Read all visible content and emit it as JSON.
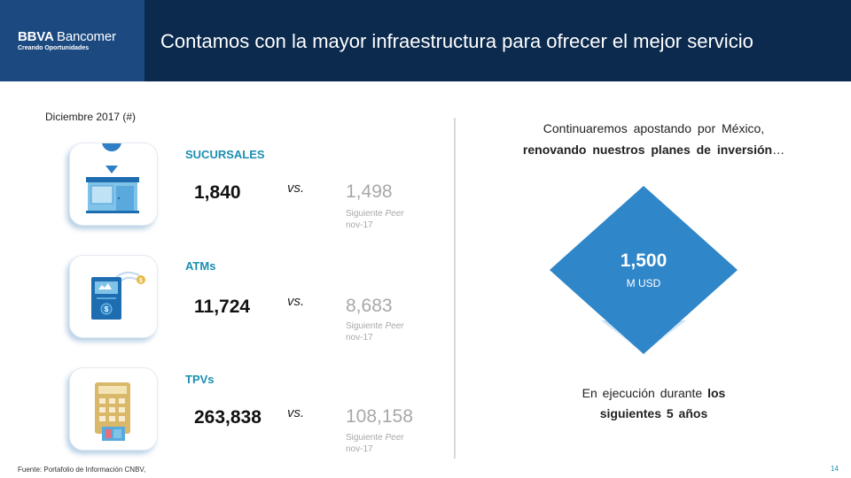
{
  "header": {
    "brand_primary": "BBVA",
    "brand_secondary": "Bancomer",
    "brand_tagline": "Creando Oportunidades",
    "title": "Contamos con la mayor infraestructura para ofrecer el mejor servicio"
  },
  "date_label": "Diciembre 2017 (#)",
  "metrics": [
    {
      "icon": "bank-branch-icon",
      "label": "SUCURSALES",
      "value": "1,840",
      "vs": "vs.",
      "peer_value": "1,498",
      "peer_note_prefix": "Siguiente ",
      "peer_note_italic": "Peer",
      "peer_date": "nov-17"
    },
    {
      "icon": "atm-icon",
      "label": "ATMs",
      "value": "11,724",
      "vs": "vs.",
      "peer_value": "8,683",
      "peer_note_prefix": "Siguiente ",
      "peer_note_italic": "Peer",
      "peer_date": "nov-17"
    },
    {
      "icon": "pos-terminal-icon",
      "label": "TPVs",
      "value": "263,838",
      "vs": "vs.",
      "peer_value": "108,158",
      "peer_note_prefix": "Siguiente ",
      "peer_note_italic": "Peer",
      "peer_date": "nov-17"
    }
  ],
  "right_panel": {
    "heading_line_1": "Continuaremos apostando por México,",
    "heading_line_2": "renovando nuestros planes de inversión",
    "heading_ellipsis": "…",
    "investment_value": "1,500",
    "investment_unit": "M USD",
    "execution_line_1_normal": "En ejecución durante ",
    "execution_line_1_bold": "los",
    "execution_line_2": "siguientes 5 años"
  },
  "footer": {
    "source": "Fuente: Portafolio de Información CNBV,",
    "page_number": "14"
  },
  "colors": {
    "header_bg": "#0b2a4e",
    "brand_bg": "#1c4a80",
    "accent_teal": "#1b8fb0",
    "diamond_blue": "#2f86c9",
    "peer_gray": "#a8a8a8"
  }
}
